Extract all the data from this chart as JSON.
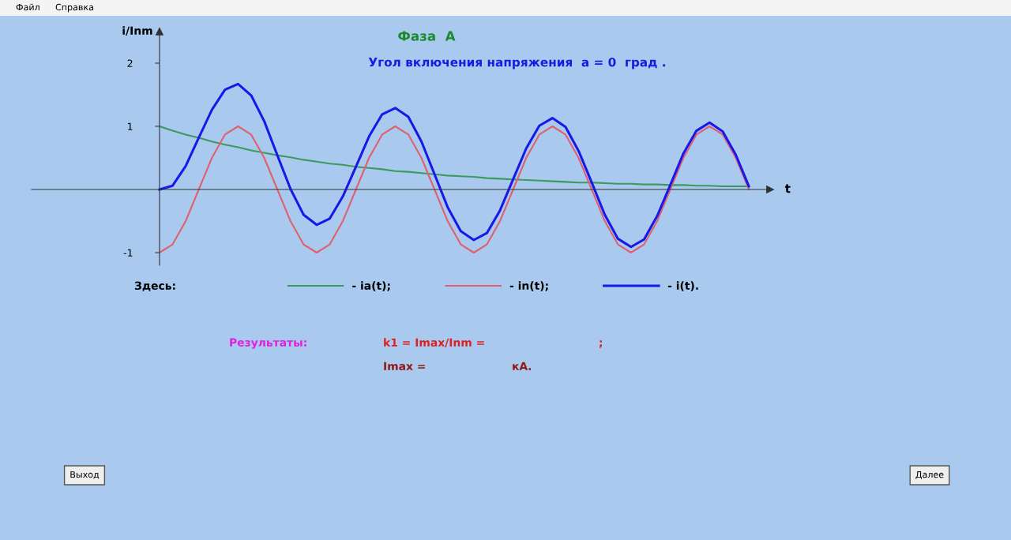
{
  "chart_data": {
    "type": "line",
    "title": "Фаза  А",
    "subtitle": "Угол включения напряжения  a = 0  град .",
    "ylabel": "i/Inm",
    "xlabel": "t",
    "legend_title": "Здесь:",
    "categories": [
      null,
      null,
      null,
      null,
      null,
      null,
      null,
      null,
      null,
      null,
      null,
      null,
      null,
      null,
      null,
      null,
      null,
      null,
      null,
      null,
      null,
      null,
      null,
      null,
      null,
      null,
      null,
      null,
      null,
      null,
      null,
      null,
      null,
      null,
      null,
      null,
      null,
      null,
      null,
      null,
      null,
      null,
      null,
      null,
      null,
      null
    ],
    "series": [
      {
        "name": "- ia(t);",
        "color": "#3c9a5c",
        "values": [
          1.0,
          0.93,
          0.87,
          0.82,
          0.76,
          0.71,
          0.67,
          0.62,
          0.58,
          0.54,
          0.51,
          0.47,
          0.44,
          0.41,
          0.39,
          0.36,
          0.34,
          0.32,
          0.29,
          0.28,
          0.26,
          0.24,
          0.22,
          0.21,
          0.2,
          0.18,
          0.17,
          0.16,
          0.15,
          0.14,
          0.13,
          0.12,
          0.11,
          0.11,
          0.1,
          0.09,
          0.09,
          0.08,
          0.08,
          0.07,
          0.07,
          0.06,
          0.06,
          0.05,
          0.05,
          0.05
        ]
      },
      {
        "name": "- in(t);",
        "color": "#e0606e",
        "values": [
          -1,
          -0.87,
          -0.5,
          0,
          0.5,
          0.87,
          1,
          0.87,
          0.5,
          0,
          -0.5,
          -0.87,
          -1,
          -0.87,
          -0.5,
          0,
          0.5,
          0.87,
          1,
          0.87,
          0.5,
          0,
          -0.5,
          -0.87,
          -1,
          -0.87,
          -0.5,
          0,
          0.5,
          0.87,
          1,
          0.87,
          0.5,
          0,
          -0.5,
          -0.87,
          -1,
          -0.87,
          -0.5,
          0,
          0.5,
          0.87,
          1,
          0.87,
          0.5,
          0
        ]
      },
      {
        "name": "- i(t).",
        "color": "#1818e8",
        "values": [
          0,
          0.06,
          0.37,
          0.82,
          1.26,
          1.58,
          1.67,
          1.49,
          1.08,
          0.54,
          0.01,
          -0.4,
          -0.56,
          -0.46,
          -0.11,
          0.36,
          0.84,
          1.19,
          1.29,
          1.15,
          0.76,
          0.24,
          -0.28,
          -0.66,
          -0.8,
          -0.69,
          -0.33,
          0.16,
          0.65,
          1.01,
          1.13,
          0.99,
          0.61,
          0.11,
          -0.4,
          -0.78,
          -0.91,
          -0.79,
          -0.42,
          0.07,
          0.57,
          0.93,
          1.06,
          0.92,
          0.55,
          0.05
        ]
      }
    ],
    "ylim": [
      -1.2,
      2.5
    ],
    "yticks": [
      -1,
      1,
      2
    ],
    "grid": false,
    "legend": "bottom",
    "tick_labels": "y",
    "marker": "none",
    "line_style": "solid",
    "annotations": [
      "Файл",
      "Справка",
      "Результаты:",
      "k1 = Imax/Inm =",
      ";",
      "Imax =",
      "кА.",
      "Выход",
      "Далее"
    ]
  }
}
